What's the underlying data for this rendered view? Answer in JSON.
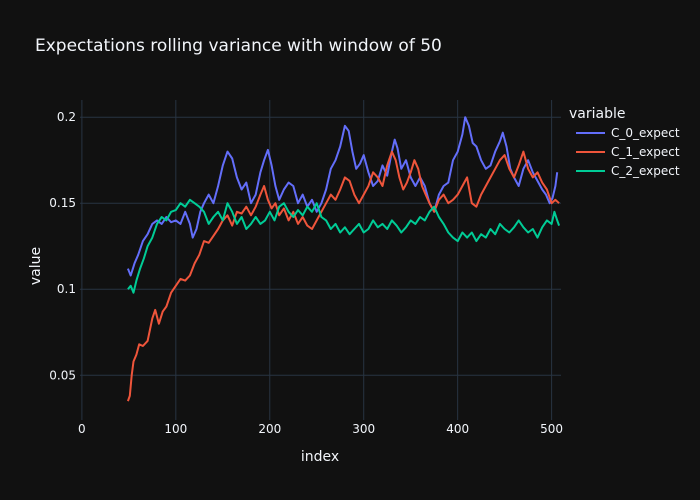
{
  "chart_data": {
    "type": "line",
    "title": "Expectations rolling variance with window of 50",
    "xlabel": "index",
    "ylabel": "value",
    "xlim": [
      -2,
      510
    ],
    "ylim": [
      0.024,
      0.21
    ],
    "x_ticks": [
      0,
      100,
      200,
      300,
      400,
      500
    ],
    "y_ticks": [
      0.05,
      0.1,
      0.15,
      0.2
    ],
    "y_tick_labels": [
      "0.05",
      "0.1",
      "0.15",
      "0.2"
    ],
    "grid": true,
    "legend_title": "variable",
    "legend_position": "top-right",
    "background": "#111111",
    "series": [
      {
        "name": "C_0_expect",
        "color": "#636efa",
        "points": [
          [
            49,
            0.112
          ],
          [
            52,
            0.108
          ],
          [
            56,
            0.115
          ],
          [
            60,
            0.12
          ],
          [
            65,
            0.128
          ],
          [
            70,
            0.132
          ],
          [
            75,
            0.138
          ],
          [
            80,
            0.14
          ],
          [
            85,
            0.138
          ],
          [
            90,
            0.142
          ],
          [
            95,
            0.139
          ],
          [
            100,
            0.14
          ],
          [
            105,
            0.138
          ],
          [
            110,
            0.145
          ],
          [
            115,
            0.138
          ],
          [
            118,
            0.13
          ],
          [
            122,
            0.135
          ],
          [
            126,
            0.145
          ],
          [
            130,
            0.15
          ],
          [
            135,
            0.155
          ],
          [
            140,
            0.15
          ],
          [
            145,
            0.16
          ],
          [
            150,
            0.172
          ],
          [
            155,
            0.18
          ],
          [
            160,
            0.176
          ],
          [
            165,
            0.165
          ],
          [
            170,
            0.158
          ],
          [
            175,
            0.162
          ],
          [
            180,
            0.15
          ],
          [
            185,
            0.155
          ],
          [
            190,
            0.168
          ],
          [
            194,
            0.175
          ],
          [
            198,
            0.181
          ],
          [
            202,
            0.172
          ],
          [
            206,
            0.16
          ],
          [
            210,
            0.152
          ],
          [
            215,
            0.158
          ],
          [
            220,
            0.162
          ],
          [
            225,
            0.16
          ],
          [
            230,
            0.15
          ],
          [
            235,
            0.155
          ],
          [
            240,
            0.148
          ],
          [
            245,
            0.152
          ],
          [
            250,
            0.145
          ],
          [
            255,
            0.15
          ],
          [
            260,
            0.158
          ],
          [
            265,
            0.17
          ],
          [
            270,
            0.175
          ],
          [
            275,
            0.183
          ],
          [
            280,
            0.195
          ],
          [
            284,
            0.192
          ],
          [
            288,
            0.18
          ],
          [
            292,
            0.17
          ],
          [
            296,
            0.173
          ],
          [
            300,
            0.178
          ],
          [
            305,
            0.168
          ],
          [
            310,
            0.16
          ],
          [
            315,
            0.163
          ],
          [
            320,
            0.172
          ],
          [
            325,
            0.166
          ],
          [
            330,
            0.18
          ],
          [
            333,
            0.187
          ],
          [
            336,
            0.182
          ],
          [
            340,
            0.17
          ],
          [
            345,
            0.175
          ],
          [
            350,
            0.165
          ],
          [
            355,
            0.16
          ],
          [
            360,
            0.165
          ],
          [
            365,
            0.16
          ],
          [
            370,
            0.15
          ],
          [
            375,
            0.145
          ],
          [
            380,
            0.155
          ],
          [
            385,
            0.16
          ],
          [
            390,
            0.162
          ],
          [
            395,
            0.175
          ],
          [
            400,
            0.18
          ],
          [
            405,
            0.19
          ],
          [
            408,
            0.2
          ],
          [
            412,
            0.195
          ],
          [
            416,
            0.185
          ],
          [
            420,
            0.183
          ],
          [
            425,
            0.175
          ],
          [
            430,
            0.17
          ],
          [
            435,
            0.172
          ],
          [
            440,
            0.18
          ],
          [
            445,
            0.186
          ],
          [
            448,
            0.191
          ],
          [
            452,
            0.183
          ],
          [
            456,
            0.17
          ],
          [
            460,
            0.165
          ],
          [
            465,
            0.16
          ],
          [
            470,
            0.17
          ],
          [
            475,
            0.175
          ],
          [
            480,
            0.168
          ],
          [
            485,
            0.163
          ],
          [
            490,
            0.158
          ],
          [
            494,
            0.155
          ],
          [
            498,
            0.15
          ],
          [
            501,
            0.153
          ],
          [
            504,
            0.16
          ],
          [
            506,
            0.168
          ]
        ]
      },
      {
        "name": "C_1_expect",
        "color": "#ef553b",
        "points": [
          [
            49,
            0.035
          ],
          [
            51,
            0.038
          ],
          [
            53,
            0.05
          ],
          [
            55,
            0.058
          ],
          [
            58,
            0.062
          ],
          [
            61,
            0.068
          ],
          [
            65,
            0.067
          ],
          [
            70,
            0.07
          ],
          [
            75,
            0.083
          ],
          [
            78,
            0.088
          ],
          [
            82,
            0.08
          ],
          [
            86,
            0.087
          ],
          [
            90,
            0.09
          ],
          [
            95,
            0.098
          ],
          [
            100,
            0.102
          ],
          [
            105,
            0.106
          ],
          [
            110,
            0.105
          ],
          [
            115,
            0.108
          ],
          [
            120,
            0.115
          ],
          [
            125,
            0.12
          ],
          [
            130,
            0.128
          ],
          [
            135,
            0.127
          ],
          [
            140,
            0.131
          ],
          [
            145,
            0.135
          ],
          [
            150,
            0.14
          ],
          [
            155,
            0.143
          ],
          [
            160,
            0.137
          ],
          [
            165,
            0.145
          ],
          [
            170,
            0.144
          ],
          [
            175,
            0.148
          ],
          [
            180,
            0.143
          ],
          [
            185,
            0.148
          ],
          [
            190,
            0.155
          ],
          [
            194,
            0.16
          ],
          [
            198,
            0.152
          ],
          [
            202,
            0.147
          ],
          [
            206,
            0.15
          ],
          [
            210,
            0.143
          ],
          [
            215,
            0.147
          ],
          [
            220,
            0.14
          ],
          [
            225,
            0.145
          ],
          [
            230,
            0.138
          ],
          [
            235,
            0.142
          ],
          [
            240,
            0.137
          ],
          [
            245,
            0.135
          ],
          [
            250,
            0.14
          ],
          [
            255,
            0.145
          ],
          [
            260,
            0.15
          ],
          [
            265,
            0.155
          ],
          [
            270,
            0.152
          ],
          [
            275,
            0.158
          ],
          [
            280,
            0.165
          ],
          [
            285,
            0.163
          ],
          [
            290,
            0.155
          ],
          [
            295,
            0.15
          ],
          [
            300,
            0.155
          ],
          [
            305,
            0.16
          ],
          [
            310,
            0.168
          ],
          [
            315,
            0.165
          ],
          [
            320,
            0.16
          ],
          [
            325,
            0.172
          ],
          [
            330,
            0.18
          ],
          [
            334,
            0.175
          ],
          [
            338,
            0.165
          ],
          [
            342,
            0.158
          ],
          [
            346,
            0.162
          ],
          [
            350,
            0.168
          ],
          [
            354,
            0.175
          ],
          [
            358,
            0.17
          ],
          [
            362,
            0.16
          ],
          [
            366,
            0.155
          ],
          [
            370,
            0.15
          ],
          [
            375,
            0.145
          ],
          [
            380,
            0.152
          ],
          [
            385,
            0.155
          ],
          [
            390,
            0.15
          ],
          [
            395,
            0.152
          ],
          [
            400,
            0.155
          ],
          [
            405,
            0.16
          ],
          [
            410,
            0.165
          ],
          [
            415,
            0.15
          ],
          [
            420,
            0.148
          ],
          [
            425,
            0.155
          ],
          [
            430,
            0.16
          ],
          [
            435,
            0.165
          ],
          [
            440,
            0.17
          ],
          [
            445,
            0.175
          ],
          [
            450,
            0.178
          ],
          [
            455,
            0.17
          ],
          [
            460,
            0.165
          ],
          [
            465,
            0.172
          ],
          [
            470,
            0.18
          ],
          [
            475,
            0.17
          ],
          [
            480,
            0.165
          ],
          [
            485,
            0.168
          ],
          [
            490,
            0.162
          ],
          [
            495,
            0.158
          ],
          [
            500,
            0.15
          ],
          [
            504,
            0.152
          ],
          [
            508,
            0.15
          ]
        ]
      },
      {
        "name": "C_2_expect",
        "color": "#00cc96",
        "points": [
          [
            49,
            0.1
          ],
          [
            52,
            0.102
          ],
          [
            55,
            0.098
          ],
          [
            58,
            0.105
          ],
          [
            62,
            0.112
          ],
          [
            66,
            0.118
          ],
          [
            70,
            0.125
          ],
          [
            75,
            0.13
          ],
          [
            80,
            0.138
          ],
          [
            85,
            0.142
          ],
          [
            90,
            0.14
          ],
          [
            95,
            0.145
          ],
          [
            100,
            0.146
          ],
          [
            105,
            0.15
          ],
          [
            110,
            0.148
          ],
          [
            115,
            0.152
          ],
          [
            120,
            0.15
          ],
          [
            125,
            0.148
          ],
          [
            130,
            0.145
          ],
          [
            135,
            0.138
          ],
          [
            140,
            0.142
          ],
          [
            145,
            0.145
          ],
          [
            150,
            0.14
          ],
          [
            155,
            0.15
          ],
          [
            160,
            0.145
          ],
          [
            165,
            0.138
          ],
          [
            170,
            0.142
          ],
          [
            175,
            0.135
          ],
          [
            180,
            0.138
          ],
          [
            185,
            0.142
          ],
          [
            190,
            0.138
          ],
          [
            195,
            0.14
          ],
          [
            200,
            0.145
          ],
          [
            205,
            0.14
          ],
          [
            210,
            0.148
          ],
          [
            215,
            0.15
          ],
          [
            220,
            0.145
          ],
          [
            225,
            0.142
          ],
          [
            230,
            0.146
          ],
          [
            235,
            0.143
          ],
          [
            240,
            0.148
          ],
          [
            245,
            0.145
          ],
          [
            250,
            0.15
          ],
          [
            255,
            0.142
          ],
          [
            260,
            0.14
          ],
          [
            265,
            0.135
          ],
          [
            270,
            0.138
          ],
          [
            275,
            0.133
          ],
          [
            280,
            0.136
          ],
          [
            285,
            0.132
          ],
          [
            290,
            0.135
          ],
          [
            295,
            0.138
          ],
          [
            300,
            0.133
          ],
          [
            305,
            0.135
          ],
          [
            310,
            0.14
          ],
          [
            315,
            0.136
          ],
          [
            320,
            0.138
          ],
          [
            325,
            0.135
          ],
          [
            330,
            0.14
          ],
          [
            335,
            0.137
          ],
          [
            340,
            0.133
          ],
          [
            345,
            0.136
          ],
          [
            350,
            0.14
          ],
          [
            355,
            0.138
          ],
          [
            360,
            0.142
          ],
          [
            365,
            0.14
          ],
          [
            370,
            0.145
          ],
          [
            375,
            0.148
          ],
          [
            380,
            0.142
          ],
          [
            385,
            0.138
          ],
          [
            390,
            0.133
          ],
          [
            395,
            0.13
          ],
          [
            400,
            0.128
          ],
          [
            405,
            0.133
          ],
          [
            410,
            0.13
          ],
          [
            415,
            0.133
          ],
          [
            420,
            0.128
          ],
          [
            425,
            0.132
          ],
          [
            430,
            0.13
          ],
          [
            435,
            0.135
          ],
          [
            440,
            0.132
          ],
          [
            445,
            0.138
          ],
          [
            450,
            0.135
          ],
          [
            455,
            0.133
          ],
          [
            460,
            0.136
          ],
          [
            465,
            0.14
          ],
          [
            470,
            0.136
          ],
          [
            475,
            0.133
          ],
          [
            480,
            0.135
          ],
          [
            485,
            0.13
          ],
          [
            490,
            0.136
          ],
          [
            495,
            0.14
          ],
          [
            500,
            0.138
          ],
          [
            503,
            0.145
          ],
          [
            506,
            0.14
          ],
          [
            508,
            0.137
          ]
        ]
      }
    ]
  }
}
